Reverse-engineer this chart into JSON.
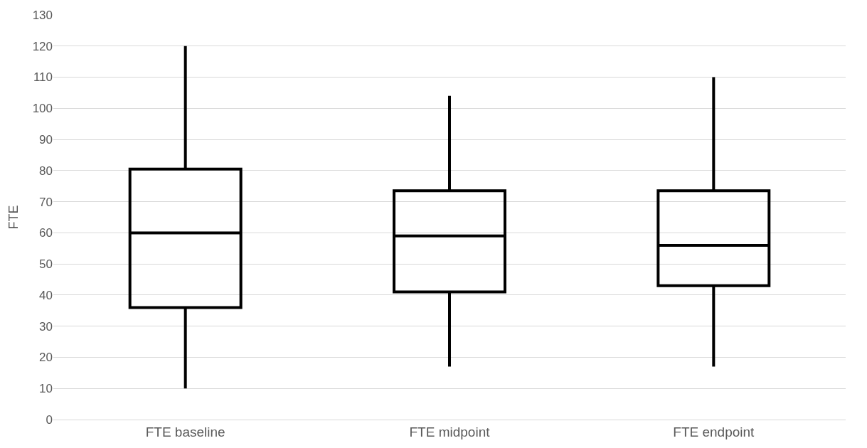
{
  "chart_data": {
    "type": "box",
    "ylabel": "FTE",
    "categories": [
      "FTE baseline",
      "FTE midpoint",
      "FTE endpoint"
    ],
    "color": "#000000",
    "boxes": [
      {
        "low": 10,
        "q1": 36,
        "median": 60,
        "q3": 80.5,
        "high": 120
      },
      {
        "low": 17,
        "q1": 41,
        "median": 59,
        "q3": 73.5,
        "high": 104
      },
      {
        "low": 17,
        "q1": 43,
        "median": 56,
        "q3": 73.5,
        "high": 110
      }
    ],
    "ylim": [
      0,
      130
    ],
    "yticks": [
      0,
      10,
      20,
      30,
      40,
      50,
      60,
      70,
      80,
      90,
      100,
      110,
      120,
      130
    ],
    "grid": "y"
  }
}
